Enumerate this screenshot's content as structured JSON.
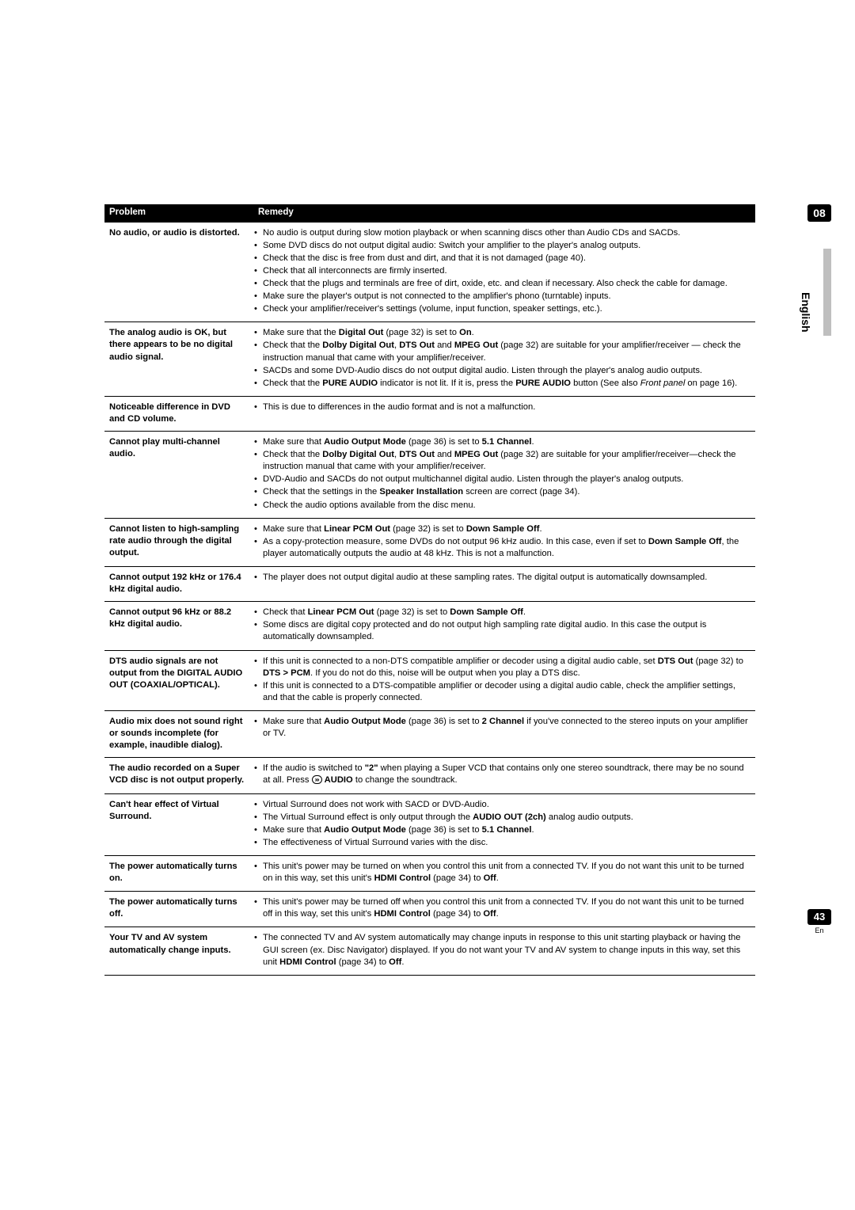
{
  "chapter_badge": "08",
  "language_tab": "English",
  "page_badge": "43",
  "page_lang_small": "En",
  "header": {
    "problem": "Problem",
    "remedy": "Remedy"
  },
  "rows": [
    {
      "problem": "No audio, or audio is distorted.",
      "items": [
        [
          {
            "t": "No audio is output during slow motion playback or when scanning discs other than Audio CDs and SACDs."
          }
        ],
        [
          {
            "t": "Some DVD discs do not output digital audio: Switch your amplifier to the player's analog outputs."
          }
        ],
        [
          {
            "t": "Check that the disc is free from dust and dirt, and that it is not damaged (page 40)."
          }
        ],
        [
          {
            "t": "Check that all interconnects are firmly inserted."
          }
        ],
        [
          {
            "t": "Check that the plugs and terminals are free of dirt, oxide, etc. and clean if necessary. Also check the cable for damage."
          }
        ],
        [
          {
            "t": "Make sure the player's output is not connected to the amplifier's phono (turntable) inputs."
          }
        ],
        [
          {
            "t": "Check your amplifier/receiver's settings (volume, input function, speaker settings, etc.)."
          }
        ]
      ]
    },
    {
      "problem": "The analog audio is OK, but there appears to be no digital audio signal.",
      "items": [
        [
          {
            "t": "Make sure that the "
          },
          {
            "t": "Digital Out",
            "b": true
          },
          {
            "t": " (page 32) is set to "
          },
          {
            "t": "On",
            "b": true
          },
          {
            "t": "."
          }
        ],
        [
          {
            "t": "Check that the "
          },
          {
            "t": "Dolby Digital Out",
            "b": true
          },
          {
            "t": ", "
          },
          {
            "t": "DTS Out",
            "b": true
          },
          {
            "t": " and "
          },
          {
            "t": "MPEG Out",
            "b": true
          },
          {
            "t": " (page 32) are suitable for your amplifier/receiver — check the instruction manual that came with your amplifier/receiver."
          }
        ],
        [
          {
            "t": "SACDs and some DVD-Audio discs do not output digital audio. Listen through the player's analog audio outputs."
          }
        ],
        [
          {
            "t": "Check that the "
          },
          {
            "t": "PURE AUDIO",
            "b": true
          },
          {
            "t": " indicator is not lit. If it is, press the "
          },
          {
            "t": "PURE AUDIO",
            "b": true
          },
          {
            "t": " button (See also "
          },
          {
            "t": "Front panel",
            "i": true
          },
          {
            "t": " on page 16)."
          }
        ]
      ]
    },
    {
      "problem": "Noticeable difference in DVD and CD volume.",
      "items": [
        [
          {
            "t": "This is due to differences in the audio format and is not a malfunction."
          }
        ]
      ]
    },
    {
      "problem": "Cannot play multi-channel audio.",
      "items": [
        [
          {
            "t": "Make sure that "
          },
          {
            "t": "Audio Output Mode",
            "b": true
          },
          {
            "t": " (page 36) is set to "
          },
          {
            "t": "5.1 Channel",
            "b": true
          },
          {
            "t": "."
          }
        ],
        [
          {
            "t": "Check that the "
          },
          {
            "t": "Dolby Digital Out",
            "b": true
          },
          {
            "t": ", "
          },
          {
            "t": "DTS Out",
            "b": true
          },
          {
            "t": " and "
          },
          {
            "t": "MPEG Out",
            "b": true
          },
          {
            "t": " (page 32) are suitable for your amplifier/receiver—check the instruction manual that came with your amplifier/receiver."
          }
        ],
        [
          {
            "t": "DVD-Audio and SACDs do not output multichannel digital audio. Listen through the player's analog outputs."
          }
        ],
        [
          {
            "t": "Check that the settings in the "
          },
          {
            "t": "Speaker Installation",
            "b": true
          },
          {
            "t": " screen are correct (page 34)."
          }
        ],
        [
          {
            "t": "Check the audio options available from the disc menu."
          }
        ]
      ]
    },
    {
      "problem": "Cannot listen to high-sampling rate audio through the digital output.",
      "items": [
        [
          {
            "t": "Make sure that "
          },
          {
            "t": "Linear PCM Out",
            "b": true
          },
          {
            "t": " (page 32) is set to "
          },
          {
            "t": "Down Sample Off",
            "b": true
          },
          {
            "t": "."
          }
        ],
        [
          {
            "t": "As a copy-protection measure, some DVDs do not output 96 kHz audio. In this case, even if set to "
          },
          {
            "t": "Down Sample Off",
            "b": true
          },
          {
            "t": ", the player automatically outputs the audio at 48 kHz. This is not a malfunction."
          }
        ]
      ]
    },
    {
      "problem": "Cannot output 192 kHz or 176.4 kHz digital audio.",
      "items": [
        [
          {
            "t": "The player does not output digital audio at these sampling rates. The digital output is automatically downsampled."
          }
        ]
      ]
    },
    {
      "problem": "Cannot output 96 kHz or 88.2 kHz digital audio.",
      "items": [
        [
          {
            "t": "Check that "
          },
          {
            "t": "Linear PCM Out",
            "b": true
          },
          {
            "t": " (page 32) is set to "
          },
          {
            "t": "Down Sample Off",
            "b": true
          },
          {
            "t": "."
          }
        ],
        [
          {
            "t": "Some discs are digital copy protected and do not output high sampling rate digital audio. In this case the output is automatically downsampled."
          }
        ]
      ]
    },
    {
      "problem": "DTS audio signals are not output from the DIGITAL AUDIO OUT (COAXIAL/OPTICAL).",
      "items": [
        [
          {
            "t": "If this unit is connected to a non-DTS compatible amplifier or decoder using a digital audio cable, set "
          },
          {
            "t": "DTS Out",
            "b": true
          },
          {
            "t": " (page 32) to "
          },
          {
            "t": "DTS > PCM",
            "b": true
          },
          {
            "t": ". If you do not do this, noise will be output when you play a DTS disc."
          }
        ],
        [
          {
            "t": "If this unit is connected to a DTS-compatible amplifier or decoder using a digital audio cable, check the amplifier settings, and that the cable is properly connected."
          }
        ]
      ]
    },
    {
      "problem": "Audio mix does not sound right or sounds incomplete (for example, inaudible dialog).",
      "items": [
        [
          {
            "t": "Make sure that "
          },
          {
            "t": "Audio Output Mode",
            "b": true
          },
          {
            "t": " (page 36) is set to "
          },
          {
            "t": "2 Channel",
            "b": true
          },
          {
            "t": " if you've connected to the stereo inputs on your amplifier or TV."
          }
        ]
      ]
    },
    {
      "problem": "The audio recorded on a Super VCD disc is not output properly.",
      "items": [
        [
          {
            "t": "If the audio is switched to "
          },
          {
            "t": "\"2\"",
            "b": true
          },
          {
            "t": " when playing a Super VCD that contains only one stereo soundtrack, there may be no sound at all. Press "
          },
          {
            "icon": "audio"
          },
          {
            "t": " "
          },
          {
            "t": "AUDIO",
            "b": true
          },
          {
            "t": " to change the soundtrack."
          }
        ]
      ]
    },
    {
      "problem": "Can't hear effect of Virtual Surround.",
      "items": [
        [
          {
            "t": "Virtual Surround does not work with SACD or DVD-Audio."
          }
        ],
        [
          {
            "t": "The Virtual Surround effect is only output through the "
          },
          {
            "t": "AUDIO OUT (2ch)",
            "b": true
          },
          {
            "t": " analog audio outputs."
          }
        ],
        [
          {
            "t": "Make sure that "
          },
          {
            "t": "Audio Output Mode",
            "b": true
          },
          {
            "t": " (page 36) is set to "
          },
          {
            "t": "5.1 Channel",
            "b": true
          },
          {
            "t": "."
          }
        ],
        [
          {
            "t": "The effectiveness of Virtual Surround varies with the disc."
          }
        ]
      ]
    },
    {
      "problem": "The power automatically turns on.",
      "items": [
        [
          {
            "t": "This unit's power may be turned on when you control this unit from a connected TV. If you do not want this unit to be turned on in this way, set this unit's "
          },
          {
            "t": "HDMI Control",
            "b": true
          },
          {
            "t": " (page 34) to "
          },
          {
            "t": "Off",
            "b": true
          },
          {
            "t": "."
          }
        ]
      ]
    },
    {
      "problem": "The power automatically turns off.",
      "items": [
        [
          {
            "t": "This unit's power may be turned off when you control this unit from a connected TV. If you do not want this unit to be turned off in this way, set this unit's "
          },
          {
            "t": "HDMI Control",
            "b": true
          },
          {
            "t": " (page 34) to "
          },
          {
            "t": "Off",
            "b": true
          },
          {
            "t": "."
          }
        ]
      ]
    },
    {
      "problem": "Your TV and AV system automatically change inputs.",
      "items": [
        [
          {
            "t": "The connected TV and AV system automatically may change inputs in response to this unit starting playback or having the GUI screen (ex. Disc Navigator) displayed. If you do not want your TV and AV system to change inputs in this way, set this unit "
          },
          {
            "t": "HDMI Control",
            "b": true
          },
          {
            "t": " (page 34) to "
          },
          {
            "t": "Off",
            "b": true
          },
          {
            "t": "."
          }
        ]
      ]
    }
  ]
}
